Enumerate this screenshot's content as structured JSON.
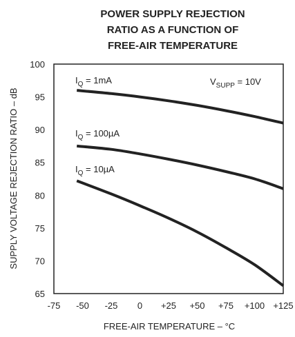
{
  "chart_data": {
    "type": "line",
    "title": [
      "POWER SUPPLY REJECTION",
      "RATIO AS A FUNCTION OF",
      "FREE-AIR TEMPERATURE"
    ],
    "xlabel": "FREE-AIR TEMPERATURE – °C",
    "ylabel": "SUPPLY VOLTAGE REJECTION RATIO – dB",
    "xlim": [
      -75,
      125
    ],
    "ylim": [
      65,
      100
    ],
    "x_ticks": [
      "-75",
      "-50",
      "-25",
      "0",
      "+25",
      "+50",
      "+75",
      "+100",
      "+125"
    ],
    "y_ticks": [
      "65",
      "70",
      "75",
      "80",
      "85",
      "90",
      "95",
      "100"
    ],
    "grid": false,
    "legend": "none",
    "annotation": {
      "main": "V",
      "sub": "SUPP",
      "rest": " = 10V"
    },
    "series": [
      {
        "label_main": "I",
        "label_sub": "Q",
        "label_rest": " = 1mA",
        "x": [
          -55,
          -25,
          0,
          25,
          50,
          75,
          100,
          125
        ],
        "y": [
          96.0,
          95.5,
          95.0,
          94.4,
          93.7,
          92.9,
          92.0,
          91.0
        ]
      },
      {
        "label_main": "I",
        "label_sub": "Q",
        "label_rest": " = 100µA",
        "x": [
          -55,
          -25,
          0,
          25,
          50,
          75,
          100,
          125
        ],
        "y": [
          87.5,
          87.0,
          86.3,
          85.5,
          84.6,
          83.6,
          82.5,
          81.0
        ]
      },
      {
        "label_main": "I",
        "label_sub": "Q",
        "label_rest": " = 10µA",
        "x": [
          -55,
          -25,
          0,
          25,
          50,
          75,
          100,
          125
        ],
        "y": [
          82.2,
          80.2,
          78.4,
          76.5,
          74.4,
          72.0,
          69.4,
          66.2
        ]
      }
    ]
  }
}
